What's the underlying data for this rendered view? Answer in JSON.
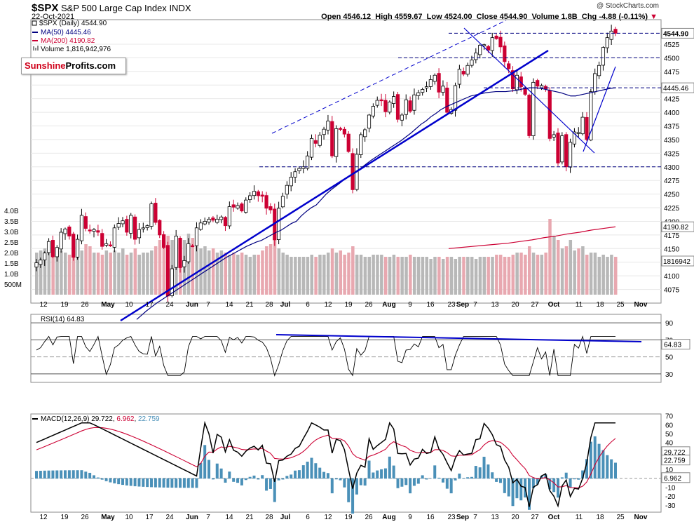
{
  "header": {
    "symbol": "$SPX",
    "name": "S&P 500 Large Cap Index",
    "exchange": "INDX",
    "date": "22-Oct-2021",
    "credit": "@ StockCharts.com",
    "open_label": "Open",
    "open": "4546.12",
    "high_label": "High",
    "high": "4559.67",
    "low_label": "Low",
    "low": "4524.00",
    "close_label": "Close",
    "close": "4544.90",
    "volume_label": "Volume",
    "volume": "1.8B",
    "chg_label": "Chg",
    "chg": "-4.88 (-0.11%)"
  },
  "logo": {
    "part1": "Sunshine",
    "part2": "Profits.com"
  },
  "legend": {
    "price": "$SPX (Daily) 4544.90",
    "ma50": "MA(50) 4445.46",
    "ma200": "MA(200) 4190.82",
    "volume": "Volume 1,816,942,976"
  },
  "colors": {
    "up": "#000000",
    "down": "#cc0033",
    "ma50": "#000080",
    "ma200": "#cc0033",
    "trend": "#0000cc",
    "hist": "#4a90b8"
  },
  "chart_data": [
    {
      "type": "candlestick",
      "title": "$SPX (Daily)",
      "x_labels": [
        "12",
        "19",
        "26",
        "May",
        "10",
        "17",
        "24",
        "Jun",
        "7",
        "14",
        "21",
        "28",
        "Jul",
        "6",
        "12",
        "19",
        "26",
        "Aug",
        "9",
        "16",
        "23",
        "Sep",
        "7",
        "13",
        "20",
        "27",
        "Oct",
        "11",
        "18",
        "25",
        "Nov"
      ],
      "ylim": [
        4050,
        4570
      ],
      "y_ticks": [
        4075,
        4100,
        4125,
        4150,
        4175,
        4200,
        4225,
        4250,
        4275,
        4300,
        4325,
        4350,
        4375,
        4400,
        4425,
        4450,
        4475,
        4500,
        4525
      ],
      "right_labels": [
        "4544.90",
        "4445.46",
        "4190.82",
        "1816942"
      ],
      "close": [
        4124,
        4129,
        4142,
        4163,
        4135,
        4152,
        4180,
        4186,
        4173,
        4134,
        4167,
        4211,
        4187,
        4183,
        4185,
        4180,
        4154,
        4159,
        4156,
        4188,
        4196,
        4201,
        4180,
        4211,
        4167,
        4185,
        4188,
        4192,
        4232,
        4198,
        4175,
        4152,
        4063,
        4113,
        4173,
        4115,
        4128,
        4159,
        4155,
        4188,
        4197,
        4200,
        4204,
        4202,
        4204,
        4208,
        4192,
        4227,
        4226,
        4229,
        4219,
        4239,
        4247,
        4255,
        4247,
        4246,
        4224,
        4221,
        4166,
        4224,
        4246,
        4266,
        4281,
        4291,
        4297,
        4300,
        4320,
        4352,
        4343,
        4358,
        4369,
        4384,
        4320,
        4370,
        4369,
        4360,
        4328,
        4258,
        4323,
        4359,
        4368,
        4395,
        4411,
        4422,
        4423,
        4401,
        4419,
        4429,
        4387,
        4395,
        4423,
        4402,
        4432,
        4436,
        4442,
        4447,
        4460,
        4468,
        4437,
        4448,
        4400,
        4405,
        4449,
        4479,
        4470,
        4486,
        4496,
        4509,
        4523,
        4524,
        4514,
        4537,
        4535,
        4520,
        4493,
        4480,
        4443,
        4468,
        4447,
        4433,
        4357,
        4455,
        4448,
        4449,
        4443,
        4352,
        4359,
        4307,
        4357,
        4300,
        4345,
        4364,
        4363,
        4391,
        4350,
        4438,
        4471,
        4486,
        4519,
        4537,
        4549,
        4545
      ],
      "ma50": [
        4020,
        4028,
        4036,
        4043,
        4050,
        4056,
        4062,
        4068,
        4074,
        4080,
        4086,
        4092,
        4098,
        4104,
        4110,
        4116,
        4122,
        4128,
        4134,
        4139,
        4144,
        4149,
        4154,
        4158,
        4162,
        4165,
        4170,
        4175,
        4180,
        4184,
        4190,
        4196,
        4200,
        4210,
        4218,
        4225,
        4230,
        4240,
        4250,
        4258,
        4265,
        4272,
        4280,
        4286,
        4292,
        4298,
        4305,
        4312,
        4318,
        4324,
        4330,
        4336,
        4342,
        4348,
        4355,
        4362,
        4370,
        4378,
        4384,
        4392,
        4398,
        4405,
        4410,
        4414,
        4418,
        4422,
        4426,
        4430,
        4432,
        4434,
        4436,
        4437,
        4438,
        4438,
        4438,
        4439,
        4440,
        4442,
        4444,
        4445,
        4445,
        4444,
        4442,
        4440,
        4438,
        4436,
        4433,
        4430,
        4430,
        4432,
        4434,
        4436,
        4438,
        4440,
        4442,
        4444,
        4445
      ],
      "ma200": [
        4150,
        4152,
        4154,
        4156,
        4158,
        4160,
        4163,
        4166,
        4170,
        4173,
        4177,
        4180,
        4184,
        4187,
        4190
      ],
      "series": [
        {
          "name": "MA(50)",
          "values": [
            4445.46
          ]
        },
        {
          "name": "MA(200)",
          "values": [
            4190.82
          ]
        }
      ]
    },
    {
      "type": "bar",
      "title": "Volume",
      "y_ticks": [
        "500M",
        "1.0B",
        "1.5B",
        "2.0B",
        "2.5B",
        "3.0B",
        "3.5B",
        "4.0B"
      ],
      "values": [
        2.0,
        2.1,
        2.2,
        2.0,
        1.9,
        2.2,
        2.1,
        2.0,
        1.9,
        2.3,
        2.5,
        2.1,
        2.4,
        2.3,
        2.0,
        2.0,
        1.9,
        2.1,
        2.0,
        2.1,
        2.0,
        2.2,
        1.9,
        2.0,
        2.2,
        1.9,
        2.0,
        2.0,
        2.1,
        2.3,
        2.6,
        2.5,
        2.8,
        2.6,
        2.4,
        2.1,
        2.6,
        2.9,
        2.7,
        2.3,
        2.2,
        2.3,
        2.1,
        2.2,
        2.0,
        2.1,
        2.0,
        1.9,
        2.0,
        1.9,
        2.0,
        1.9,
        1.8,
        1.9,
        1.9,
        2.1,
        2.3,
        2.4,
        3.2,
        2.2,
        2.0,
        1.9,
        1.8,
        1.8,
        1.8,
        1.8,
        1.8,
        1.9,
        1.8,
        1.9,
        1.9,
        2.0,
        2.2,
        2.0,
        2.1,
        1.9,
        2.0,
        2.3,
        1.9,
        1.9,
        1.8,
        1.8,
        1.9,
        1.9,
        1.9,
        1.8,
        1.8,
        1.9,
        1.8,
        1.8,
        1.8,
        1.9,
        1.8,
        1.8,
        1.8,
        1.8,
        1.7,
        1.8,
        1.8,
        1.7,
        1.8,
        1.8,
        1.7,
        1.8,
        1.8,
        1.8,
        1.8,
        1.7,
        1.8,
        1.8,
        1.8,
        1.8,
        1.9,
        1.9,
        1.8,
        1.8,
        1.9,
        2.0,
        2.0,
        1.9,
        2.3,
        2.0,
        1.9,
        1.9,
        2.0,
        3.6,
        2.8,
        2.6,
        2.2,
        2.3,
        2.6,
        2.1,
        2.2,
        2.3,
        1.9,
        2.0,
        2.0,
        1.8,
        1.9,
        1.8,
        1.9,
        1.8
      ]
    },
    {
      "type": "line",
      "title": "RSI(14)",
      "legend": "RSI(14) 64.83",
      "y_ticks": [
        90,
        70,
        50,
        30
      ],
      "right_label": "64.83",
      "ylim": [
        20,
        100
      ]
    },
    {
      "type": "line",
      "title": "MACD(12,26,9)",
      "legend_label": "MACD(12,26,9)",
      "legend_v1": "29.722",
      "legend_v2": "6.962",
      "legend_v3": "22.759",
      "y_ticks": [
        70,
        60,
        50,
        40,
        30,
        20,
        10,
        0,
        -10,
        -20,
        -30
      ],
      "right_labels": [
        "29.722",
        "22.759",
        "6.962"
      ],
      "ylim": [
        -38,
        72
      ]
    }
  ]
}
